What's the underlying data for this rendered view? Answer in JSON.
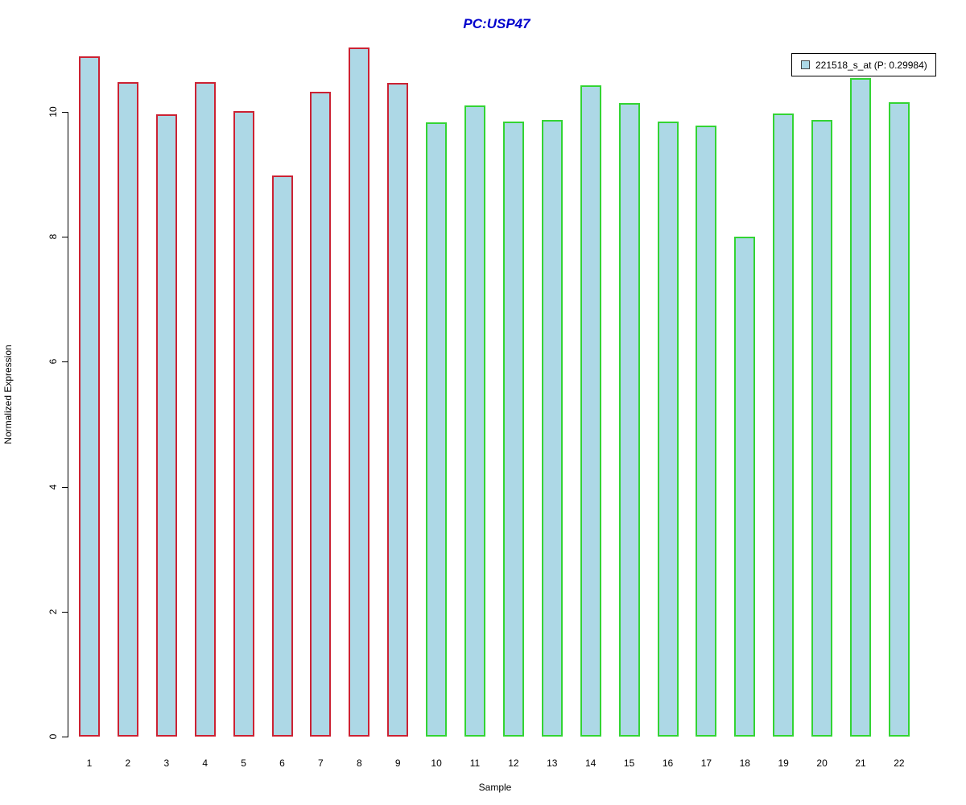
{
  "chart_data": {
    "type": "bar",
    "title": "PC:USP47",
    "xlabel": "Sample",
    "ylabel": "Normalized Expression",
    "categories": [
      "1",
      "2",
      "3",
      "4",
      "5",
      "6",
      "7",
      "8",
      "9",
      "10",
      "11",
      "12",
      "13",
      "14",
      "15",
      "16",
      "17",
      "18",
      "19",
      "20",
      "21",
      "22"
    ],
    "values": [
      10.89,
      10.48,
      9.96,
      10.48,
      10.01,
      8.98,
      10.32,
      11.03,
      10.46,
      9.83,
      10.1,
      9.84,
      9.87,
      10.43,
      10.14,
      9.84,
      9.78,
      8.0,
      9.97,
      9.87,
      10.54,
      10.15
    ],
    "yticks": [
      0,
      2,
      4,
      6,
      8,
      10
    ],
    "ylim": [
      0,
      11.2
    ],
    "grid": false,
    "legend": {
      "label": "221518_s_at (P: 0.29984)",
      "position": "top-right"
    },
    "groups": [
      {
        "name": "samples 1-9",
        "start_index": 0,
        "end_index": 8,
        "border_color": "#cc2233"
      },
      {
        "name": "samples 10-22",
        "start_index": 9,
        "end_index": 21,
        "border_color": "#33d433"
      }
    ],
    "colors": {
      "bar_fill": "#add8e6",
      "red_group_border": "#cc2233",
      "green_group_border": "#33d433",
      "title": "#0000cc",
      "axis": "#000000"
    }
  }
}
